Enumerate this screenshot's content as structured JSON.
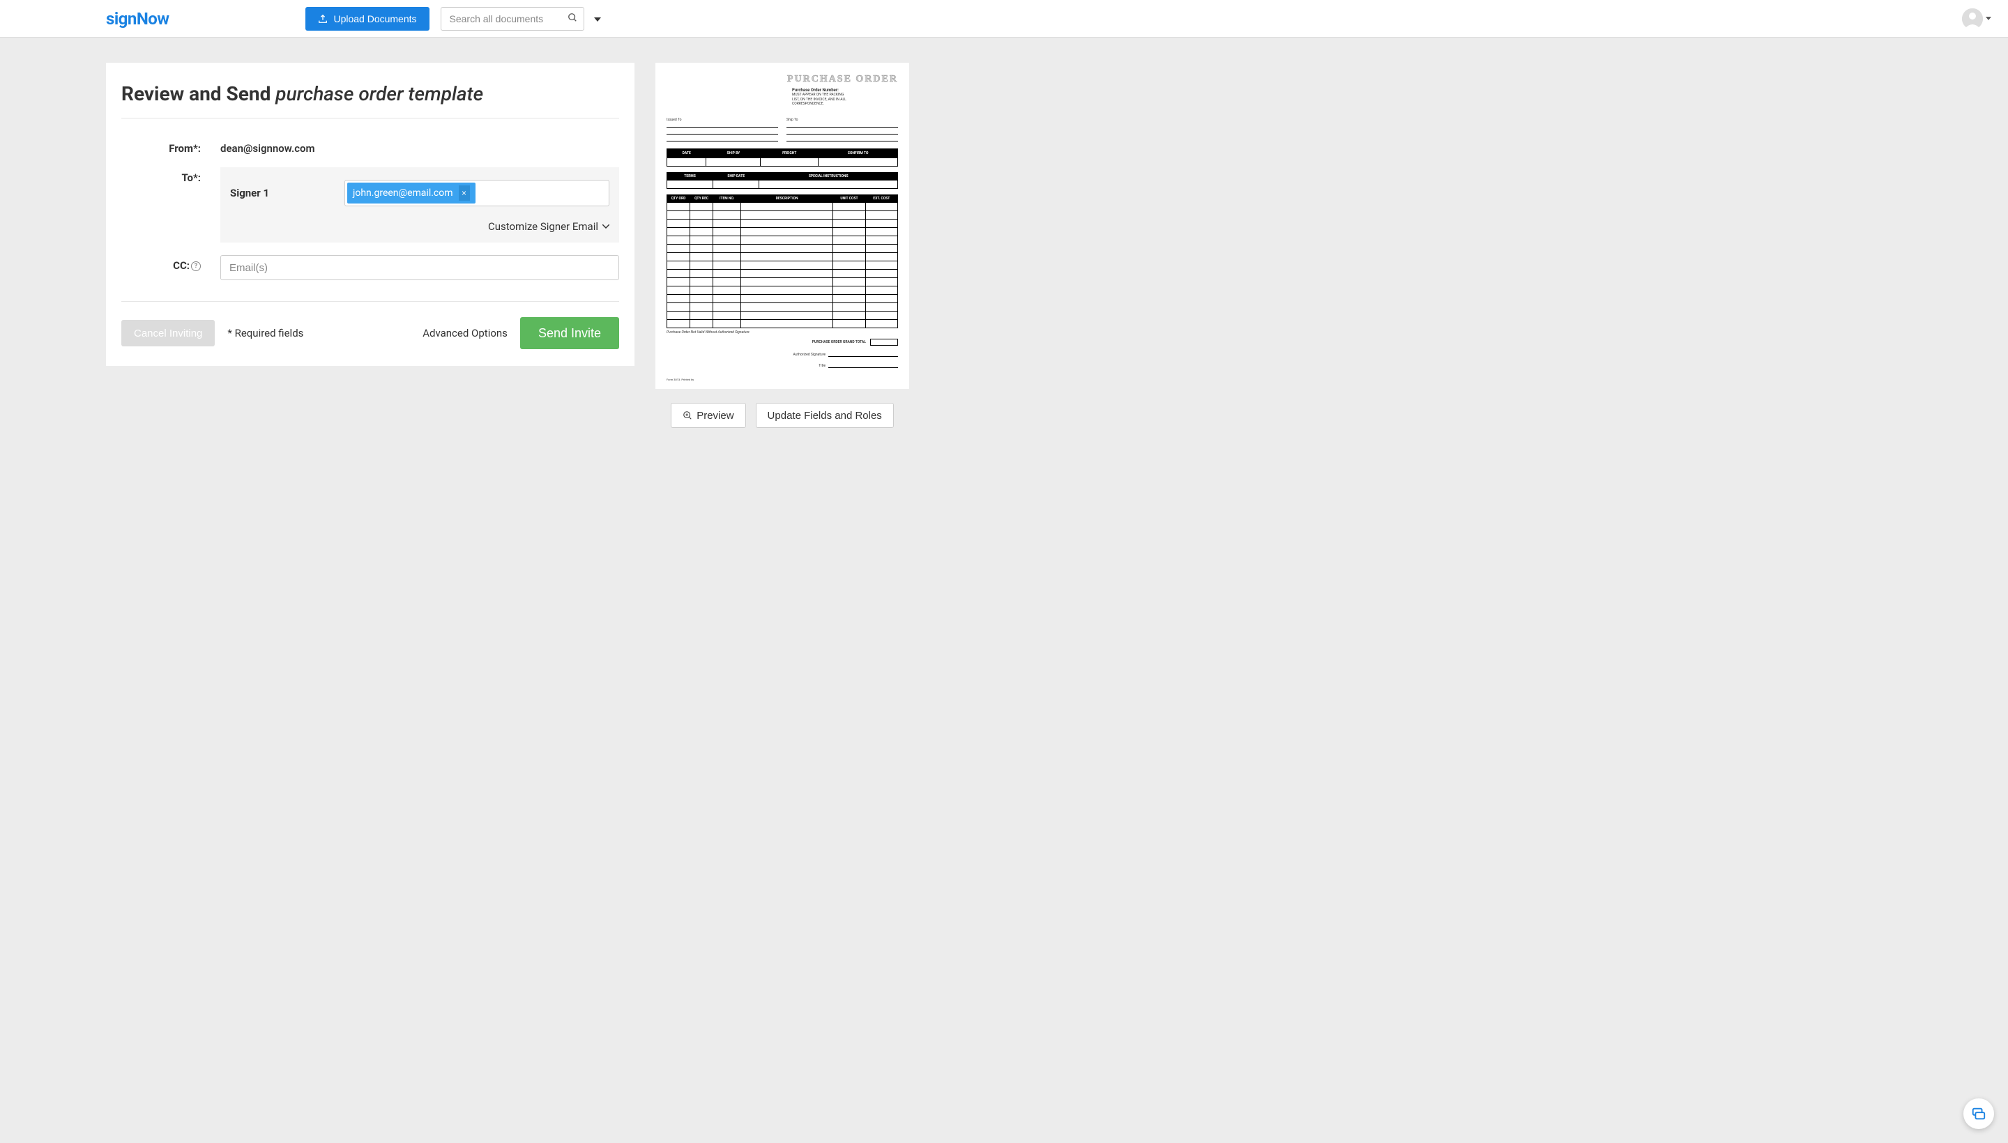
{
  "header": {
    "logo": "signNow",
    "upload_label": "Upload Documents",
    "search_placeholder": "Search all documents"
  },
  "card": {
    "title_prefix": "Review and Send ",
    "title_doc": "purchase order template",
    "from_label": "From*:",
    "from_value": "dean@signnow.com",
    "to_label": "To*:",
    "signer_label": "Signer 1",
    "signer_email": "john.green@email.com",
    "customize_label": "Customize Signer Email",
    "cc_label": "CC:",
    "cc_placeholder": "Email(s)",
    "cancel_label": "Cancel Inviting",
    "required_note": "* Required fields",
    "advanced_label": "Advanced Options",
    "send_label": "Send Invite"
  },
  "preview": {
    "po_title": "PURCHASE ORDER",
    "po_number_label": "Purchase Order Number:",
    "po_number_note1": "MUST APPEAR ON THE PACKING",
    "po_number_note2": "LIST, ON THE INVOICE, AND IN ALL",
    "po_number_note3": "CORRESPONDENCE.",
    "issued_to": "Issued To",
    "ship_to": "Ship To",
    "hdr1": [
      "DATE",
      "SHIP BY",
      "FREIGHT",
      "CONFIRM TO"
    ],
    "hdr2": [
      "TERMS",
      "SHIP DATE",
      "SPECIAL INSTRUCTIONS"
    ],
    "items_hdr": [
      "QTY ORD",
      "QTY REC",
      "ITEM NO.",
      "DESCRIPTION",
      "UNIT COST",
      "EXT. COST"
    ],
    "not_valid": "Purchase Order Not Valid Without Authorized Signature",
    "grand_total": "PURCHASE ORDER GRAND TOTAL",
    "auth_sig": "Authorized Signature",
    "title_label": "Title",
    "form_label": "Form 3013. Printed by",
    "preview_btn": "Preview",
    "update_btn": "Update Fields and Roles"
  },
  "colors": {
    "primary": "#1a82e2",
    "success": "#5cb85c",
    "chip": "#3ba3f0",
    "bg": "#ececec"
  }
}
